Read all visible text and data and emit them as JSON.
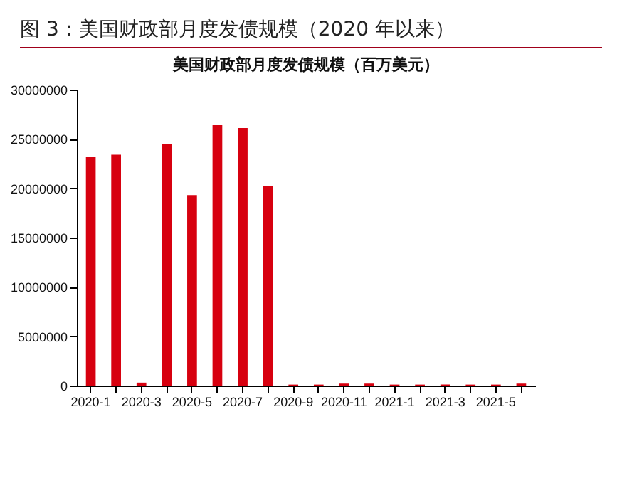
{
  "chart_data": {
    "type": "bar",
    "title": "图 3：美国财政部月度发债规模（2020 年以来）",
    "subtitle": "美国财政部月度发债规模（百万美元）",
    "categories": [
      "2020-1",
      null,
      "2020-3",
      null,
      "2020-5",
      null,
      "2020-7",
      null,
      "2020-9",
      null,
      "2020-11",
      null,
      "2021-1",
      null,
      "2021-3",
      null,
      "2021-5",
      null
    ],
    "values": [
      23200000,
      23400000,
      300000,
      24500000,
      19300000,
      26400000,
      26100000,
      20200000,
      100000,
      100000,
      200000,
      200000,
      100000,
      100000,
      100000,
      100000,
      100000,
      200000
    ],
    "color": "#d7000f",
    "ylim": [
      0,
      30000000
    ],
    "yticks": [
      0,
      5000000,
      10000000,
      15000000,
      20000000,
      25000000,
      30000000
    ]
  }
}
